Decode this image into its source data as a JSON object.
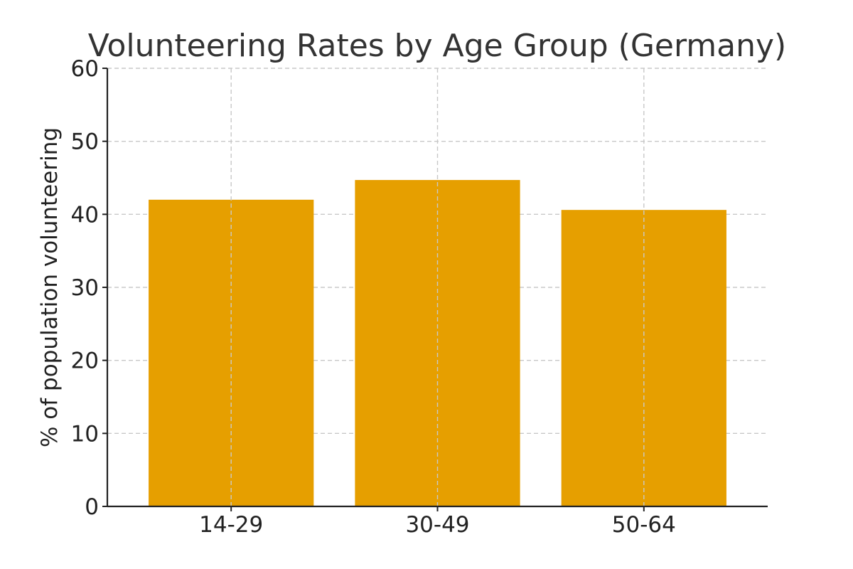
{
  "chart_data": {
    "type": "bar",
    "title": "Volunteering Rates by Age Group (Germany)",
    "xlabel": "",
    "ylabel": "% of population volunteering",
    "categories": [
      "14-29",
      "30-49",
      "50-64"
    ],
    "values": [
      42.0,
      44.7,
      40.6
    ],
    "ylim": [
      0,
      60
    ],
    "yticks": [
      0,
      10,
      20,
      30,
      40,
      50,
      60
    ],
    "grid": true,
    "bar_color": "#E69F00"
  }
}
